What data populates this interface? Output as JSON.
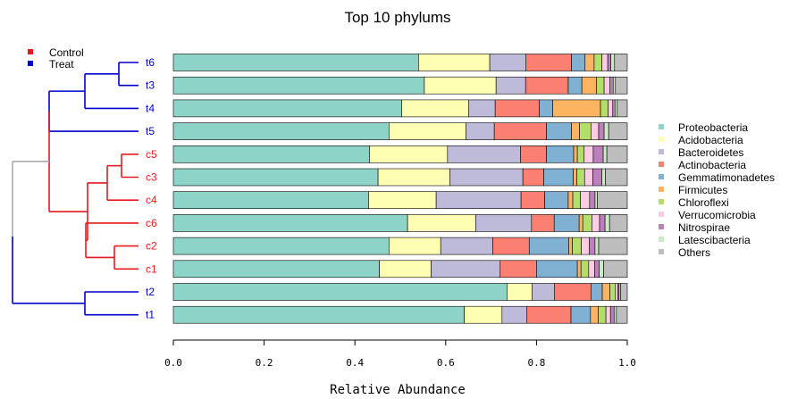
{
  "chart_data": {
    "type": "bar",
    "orientation": "horizontal",
    "stacked": true,
    "title": "Top 10 phylums",
    "xlabel": "Relative Abundance",
    "xlim": [
      0,
      1
    ],
    "xticks": [
      "0.0",
      "0.2",
      "0.4",
      "0.6",
      "0.8",
      "1.0"
    ],
    "categories": [
      "t6",
      "t3",
      "t4",
      "t5",
      "c5",
      "c3",
      "c4",
      "c6",
      "c2",
      "c1",
      "t2",
      "t1"
    ],
    "group_legend": [
      {
        "name": "Control",
        "color": "#e41a1c"
      },
      {
        "name": "Treat",
        "color": "#0000cc"
      }
    ],
    "sample_groups": {
      "t6": "Treat",
      "t3": "Treat",
      "t4": "Treat",
      "t5": "Treat",
      "c5": "Control",
      "c3": "Control",
      "c4": "Control",
      "c6": "Control",
      "c2": "Control",
      "c1": "Control",
      "t2": "Treat",
      "t1": "Treat"
    },
    "legend_position": "right",
    "series": [
      {
        "name": "Proteobacteria",
        "color": "#8dd3c7",
        "values": [
          0.54,
          0.553,
          0.503,
          0.475,
          0.432,
          0.451,
          0.43,
          0.516,
          0.475,
          0.454,
          0.735,
          0.641
        ]
      },
      {
        "name": "Acidobacteria",
        "color": "#ffffb3",
        "values": [
          0.157,
          0.158,
          0.148,
          0.17,
          0.172,
          0.158,
          0.149,
          0.15,
          0.114,
          0.114,
          0.055,
          0.083
        ]
      },
      {
        "name": "Bacteroidetes",
        "color": "#bebada",
        "values": [
          0.08,
          0.065,
          0.058,
          0.062,
          0.161,
          0.161,
          0.187,
          0.123,
          0.115,
          0.152,
          0.05,
          0.055
        ]
      },
      {
        "name": "Actinobacteria",
        "color": "#fb8072",
        "values": [
          0.1,
          0.094,
          0.097,
          0.115,
          0.057,
          0.046,
          0.052,
          0.05,
          0.08,
          0.08,
          0.08,
          0.097
        ]
      },
      {
        "name": "Gemmatimonadetes",
        "color": "#80b1d3",
        "values": [
          0.03,
          0.03,
          0.03,
          0.055,
          0.06,
          0.065,
          0.052,
          0.055,
          0.087,
          0.09,
          0.025,
          0.043
        ]
      },
      {
        "name": "Firmicutes",
        "color": "#fdb462",
        "values": [
          0.02,
          0.032,
          0.105,
          0.018,
          0.008,
          0.008,
          0.01,
          0.008,
          0.008,
          0.008,
          0.017,
          0.017
        ]
      },
      {
        "name": "Chloroflexi",
        "color": "#b3de69",
        "values": [
          0.017,
          0.017,
          0.017,
          0.025,
          0.015,
          0.017,
          0.017,
          0.02,
          0.02,
          0.017,
          0.012,
          0.017
        ]
      },
      {
        "name": "Verrucomicrobia",
        "color": "#fccde5",
        "values": [
          0.013,
          0.013,
          0.01,
          0.017,
          0.02,
          0.018,
          0.02,
          0.017,
          0.017,
          0.013,
          0.005,
          0.01
        ]
      },
      {
        "name": "Nitrospirae",
        "color": "#bc80bd",
        "values": [
          0.007,
          0.007,
          0.005,
          0.012,
          0.022,
          0.02,
          0.012,
          0.012,
          0.013,
          0.01,
          0.003,
          0.008
        ]
      },
      {
        "name": "Latescibacteria",
        "color": "#ccebc5",
        "values": [
          0.008,
          0.005,
          0.005,
          0.01,
          0.008,
          0.008,
          0.005,
          0.01,
          0.008,
          0.01,
          0.003,
          0.005
        ]
      },
      {
        "name": "Others",
        "color": "#bdbdbd",
        "values": [
          0.028,
          0.026,
          0.022,
          0.041,
          0.045,
          0.048,
          0.066,
          0.039,
          0.063,
          0.052,
          0.015,
          0.024
        ]
      }
    ]
  }
}
